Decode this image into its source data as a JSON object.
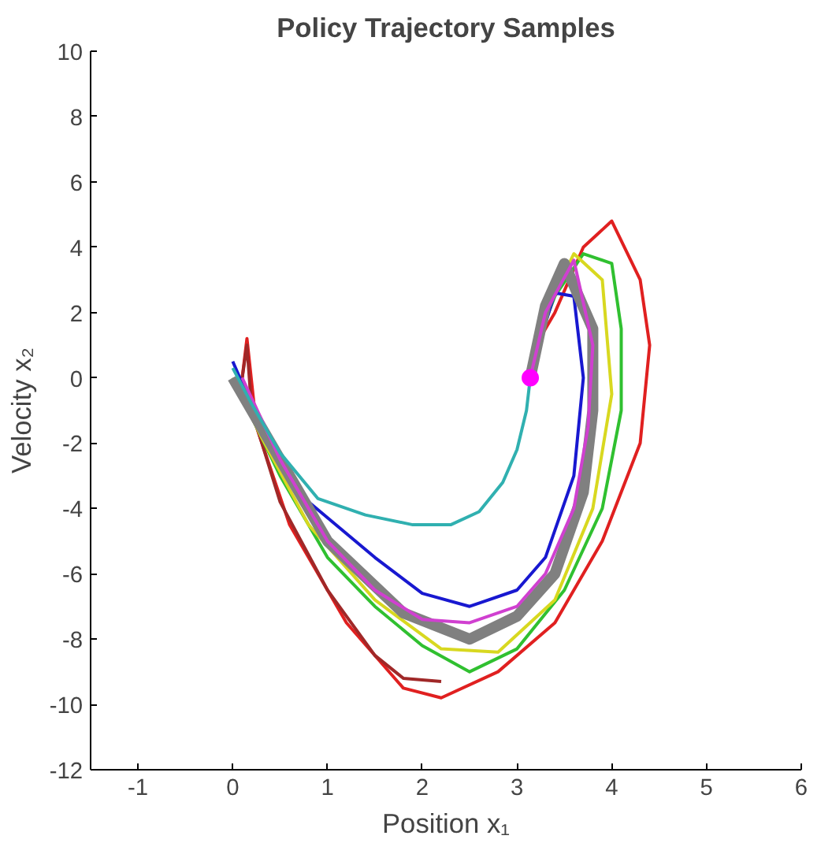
{
  "chart_data": {
    "type": "line",
    "title": "Policy Trajectory Samples",
    "xlabel": "Position x₁",
    "ylabel": "Velocity x₂",
    "xlim": [
      -1.5,
      6
    ],
    "ylim": [
      -12,
      10
    ],
    "xticks": [
      -1,
      0,
      1,
      2,
      3,
      4,
      5,
      6
    ],
    "yticks": [
      -12,
      -10,
      -8,
      -6,
      -4,
      -2,
      0,
      2,
      4,
      6,
      8,
      10
    ],
    "grid": false,
    "marker": "none",
    "line_style": "solid",
    "series": [
      {
        "color": "#e02020",
        "x": [
          0.1,
          0.15,
          0.25,
          0.6,
          1.2,
          1.8,
          2.2,
          2.8,
          3.4,
          3.9,
          4.3,
          4.4,
          4.3,
          4.0,
          3.7,
          3.4,
          3.2,
          3.14
        ],
        "values": [
          0,
          1.2,
          -1.5,
          -4.5,
          -7.5,
          -9.5,
          -9.8,
          -9,
          -7.5,
          -5,
          -2,
          1,
          3,
          4.8,
          4,
          2,
          1,
          0
        ]
      },
      {
        "color": "#a02828",
        "x": [
          0.1,
          0.15,
          0.2,
          0.5,
          1.0,
          1.5,
          1.8,
          2.2
        ],
        "values": [
          0,
          1.0,
          -1.0,
          -3.8,
          -6.5,
          -8.5,
          -9.2,
          -9.3
        ]
      },
      {
        "color": "#30c030",
        "x": [
          0,
          0.2,
          0.5,
          1.0,
          1.5,
          2.0,
          2.5,
          3.0,
          3.5,
          3.9,
          4.1,
          4.1,
          4.0,
          3.7,
          3.4,
          3.2,
          3.14
        ],
        "values": [
          0,
          -1.2,
          -3,
          -5.5,
          -7,
          -8.2,
          -9,
          -8.3,
          -6.5,
          -4,
          -1,
          1.5,
          3.5,
          3.8,
          2.5,
          1,
          0
        ]
      },
      {
        "color": "#d8d820",
        "x": [
          0,
          0.3,
          0.8,
          1.5,
          2.2,
          2.8,
          3.4,
          3.8,
          4.0,
          3.9,
          3.6,
          3.3,
          3.14
        ],
        "values": [
          0,
          -1.8,
          -4.5,
          -6.8,
          -8.3,
          -8.4,
          -6.8,
          -4,
          -0.5,
          3,
          3.8,
          2,
          0
        ]
      },
      {
        "color": "#1818d0",
        "x": [
          0,
          0.3,
          0.8,
          1.5,
          2.0,
          2.5,
          3.0,
          3.3,
          3.6,
          3.7,
          3.6,
          3.4,
          3.25,
          3.14
        ],
        "values": [
          0.5,
          -1.5,
          -3.8,
          -5.5,
          -6.6,
          -7,
          -6.5,
          -5.5,
          -3,
          0,
          2.5,
          2.6,
          1.2,
          0
        ]
      },
      {
        "color": "#808080",
        "x": [
          0,
          0.3,
          1.0,
          1.8,
          2.5,
          3.0,
          3.4,
          3.7,
          3.8,
          3.8,
          3.5,
          3.3,
          3.14
        ],
        "values": [
          0,
          -1.5,
          -5,
          -7.2,
          -8,
          -7.3,
          -6,
          -3.5,
          -1,
          1.5,
          3.5,
          2.2,
          0
        ]
      },
      {
        "color": "#d040d0",
        "x": [
          0.1,
          0.5,
          1.0,
          1.5,
          2.0,
          2.5,
          3.0,
          3.3,
          3.6,
          3.75,
          3.8,
          3.6,
          3.3,
          3.14
        ],
        "values": [
          0,
          -2.5,
          -5,
          -6.5,
          -7.4,
          -7.5,
          -7,
          -6,
          -4,
          -1.5,
          1,
          3.6,
          2,
          0
        ]
      },
      {
        "color": "#30b0b0",
        "x": [
          0,
          0.2,
          0.5,
          0.9,
          1.4,
          1.9,
          2.3,
          2.6,
          2.85,
          3.0,
          3.1,
          3.14
        ],
        "values": [
          0.3,
          -0.8,
          -2.3,
          -3.7,
          -4.2,
          -4.5,
          -4.5,
          -4.1,
          -3.2,
          -2.2,
          -1,
          0
        ]
      },
      {
        "type": "scatter",
        "marker": "circle",
        "color": "#ff00ff",
        "x": [
          3.14
        ],
        "values": [
          0
        ]
      }
    ]
  }
}
